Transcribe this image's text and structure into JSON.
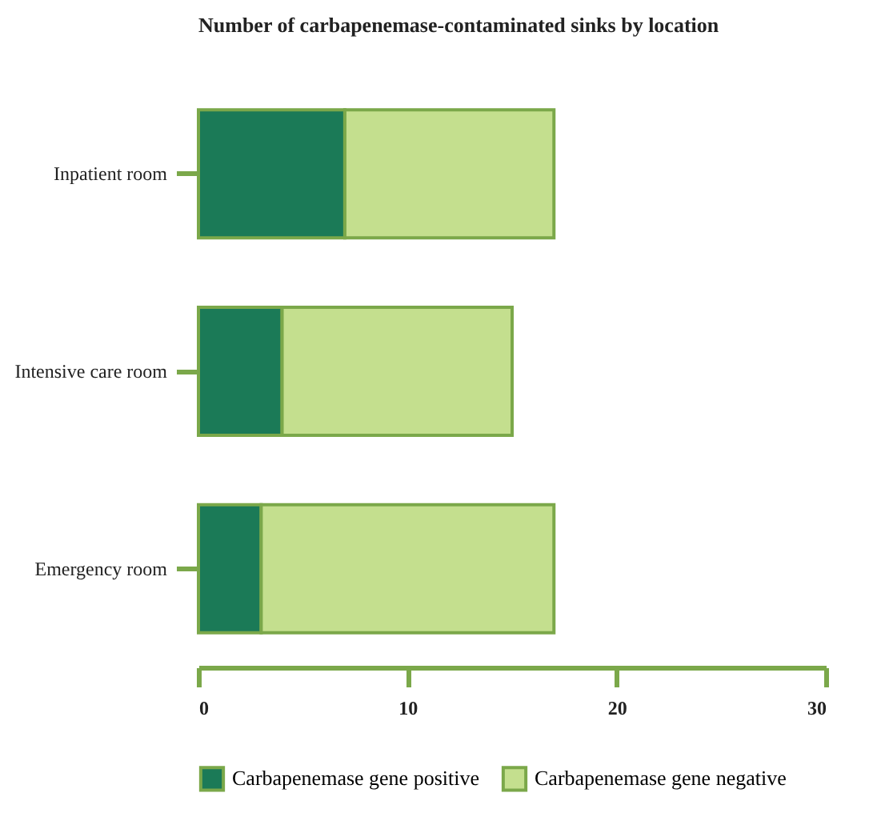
{
  "chart_data": {
    "type": "bar",
    "orientation": "horizontal",
    "stacked": true,
    "title": "Number of carbapenemase-contaminated sinks by location",
    "categories": [
      "Inpatient room",
      "Intensive care room",
      "Emergency room"
    ],
    "series": [
      {
        "name": "Carbapenemase gene positive",
        "color": "#1b7a57",
        "values": [
          7,
          4,
          3
        ]
      },
      {
        "name": "Carbapenemase gene negative",
        "color": "#c4df8e",
        "values": [
          10,
          11,
          14
        ]
      }
    ],
    "xlim": [
      0,
      30
    ],
    "xticks": [
      0,
      10,
      20,
      30
    ],
    "grid": false,
    "legend": "bottom"
  }
}
